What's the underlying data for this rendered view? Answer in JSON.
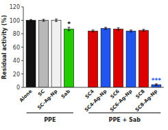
{
  "chart_data": {
    "type": "bar",
    "ylabel": "Residual activity (%)",
    "ylim": [
      0,
      120
    ],
    "yticks": [
      0,
      20,
      40,
      60,
      80,
      100,
      120
    ],
    "grid": false,
    "groups": [
      {
        "label": "PPE",
        "categories": [
          "Alone",
          "SC",
          "SC-Ag-Np",
          "Sab"
        ],
        "values": [
          100,
          100,
          100,
          87
        ],
        "errors": [
          1.2,
          1.5,
          1.8,
          2.5
        ],
        "colors": [
          "#111111",
          "#b8b8b8",
          "#f0f0f0",
          "#22cc00"
        ]
      },
      {
        "label": "PPE + Sab",
        "categories": [
          "SC4",
          "SC4-Ag-Np",
          "SC6",
          "SC6-Ag-Np",
          "SC8",
          "SC8-Ag-Np"
        ],
        "values": [
          84,
          88,
          87,
          84,
          85,
          4
        ],
        "errors": [
          1.5,
          1.5,
          1.8,
          1.5,
          1.5,
          1.2
        ],
        "colors": [
          "#dd0000",
          "#2255ee",
          "#dd0000",
          "#2255ee",
          "#dd0000",
          "#2255ee"
        ]
      }
    ],
    "annotations": [
      {
        "text": "*",
        "category": "Sab",
        "color": "#000000"
      },
      {
        "text": "***",
        "category": "SC8-Ag-Np",
        "color": "#2255ee"
      }
    ]
  }
}
